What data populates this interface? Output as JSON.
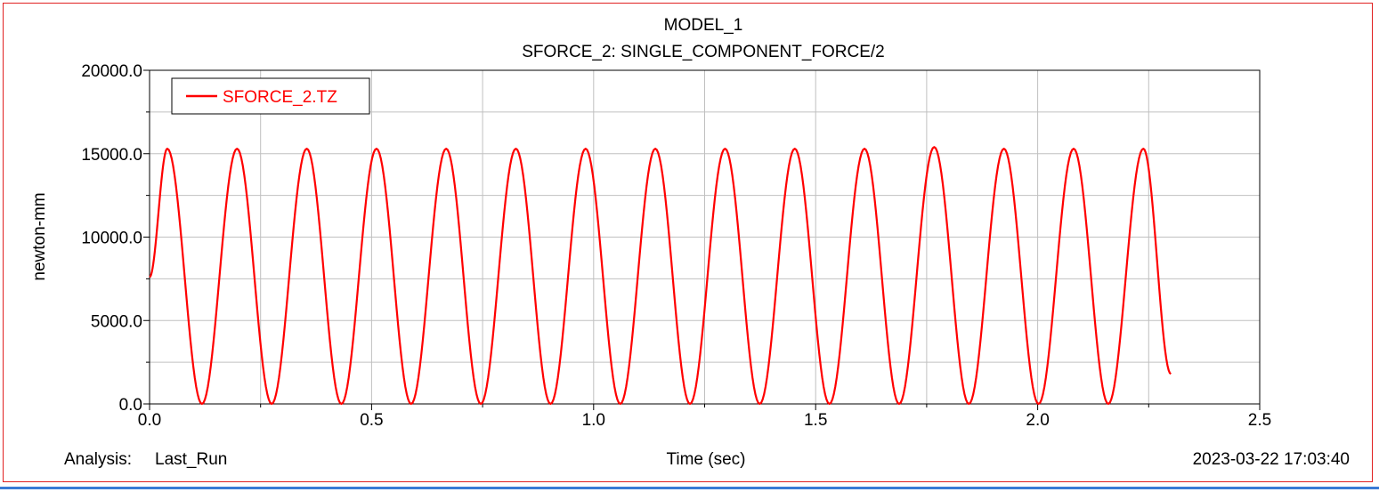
{
  "title": "MODEL_1",
  "subtitle": "SFORCE_2: SINGLE_COMPONENT_FORCE/2",
  "footer": {
    "analysis_prefix": "Analysis:",
    "analysis_name": "Last_Run",
    "timestamp": "2023-03-22 17:03:40"
  },
  "colors": {
    "series": "#ff0000",
    "frame": "#e02020",
    "grid": "#c0c0c0"
  },
  "chart_data": {
    "type": "line",
    "title": "MODEL_1",
    "subtitle": "SFORCE_2: SINGLE_COMPONENT_FORCE/2",
    "xlabel": "Time (sec)",
    "ylabel": "newton-mm",
    "xlim": [
      0.0,
      2.5
    ],
    "ylim": [
      0.0,
      20000.0
    ],
    "x_ticks": [
      "0.0",
      "0.5",
      "1.0",
      "1.5",
      "2.0",
      "2.5"
    ],
    "y_ticks": [
      "0.0",
      "5000.0",
      "10000.0",
      "15000.0",
      "20000.0"
    ],
    "grid": true,
    "legend_position": "top-left",
    "series": [
      {
        "name": "SFORCE_2.TZ",
        "color": "#ff0000",
        "x": [
          0.0,
          0.04,
          0.118,
          0.197,
          0.275,
          0.354,
          0.432,
          0.511,
          0.589,
          0.668,
          0.746,
          0.825,
          0.903,
          0.982,
          1.06,
          1.139,
          1.217,
          1.296,
          1.374,
          1.453,
          1.531,
          1.61,
          1.688,
          1.767,
          1.845,
          1.924,
          2.002,
          2.081,
          2.159,
          2.238,
          2.3
        ],
        "y": [
          7600,
          15300,
          0,
          15300,
          0,
          15300,
          0,
          15300,
          0,
          15300,
          0,
          15300,
          0,
          15300,
          0,
          15300,
          0,
          15300,
          0,
          15300,
          0,
          15300,
          0,
          15400,
          0,
          15300,
          0,
          15300,
          0,
          15300,
          1800
        ]
      }
    ]
  }
}
